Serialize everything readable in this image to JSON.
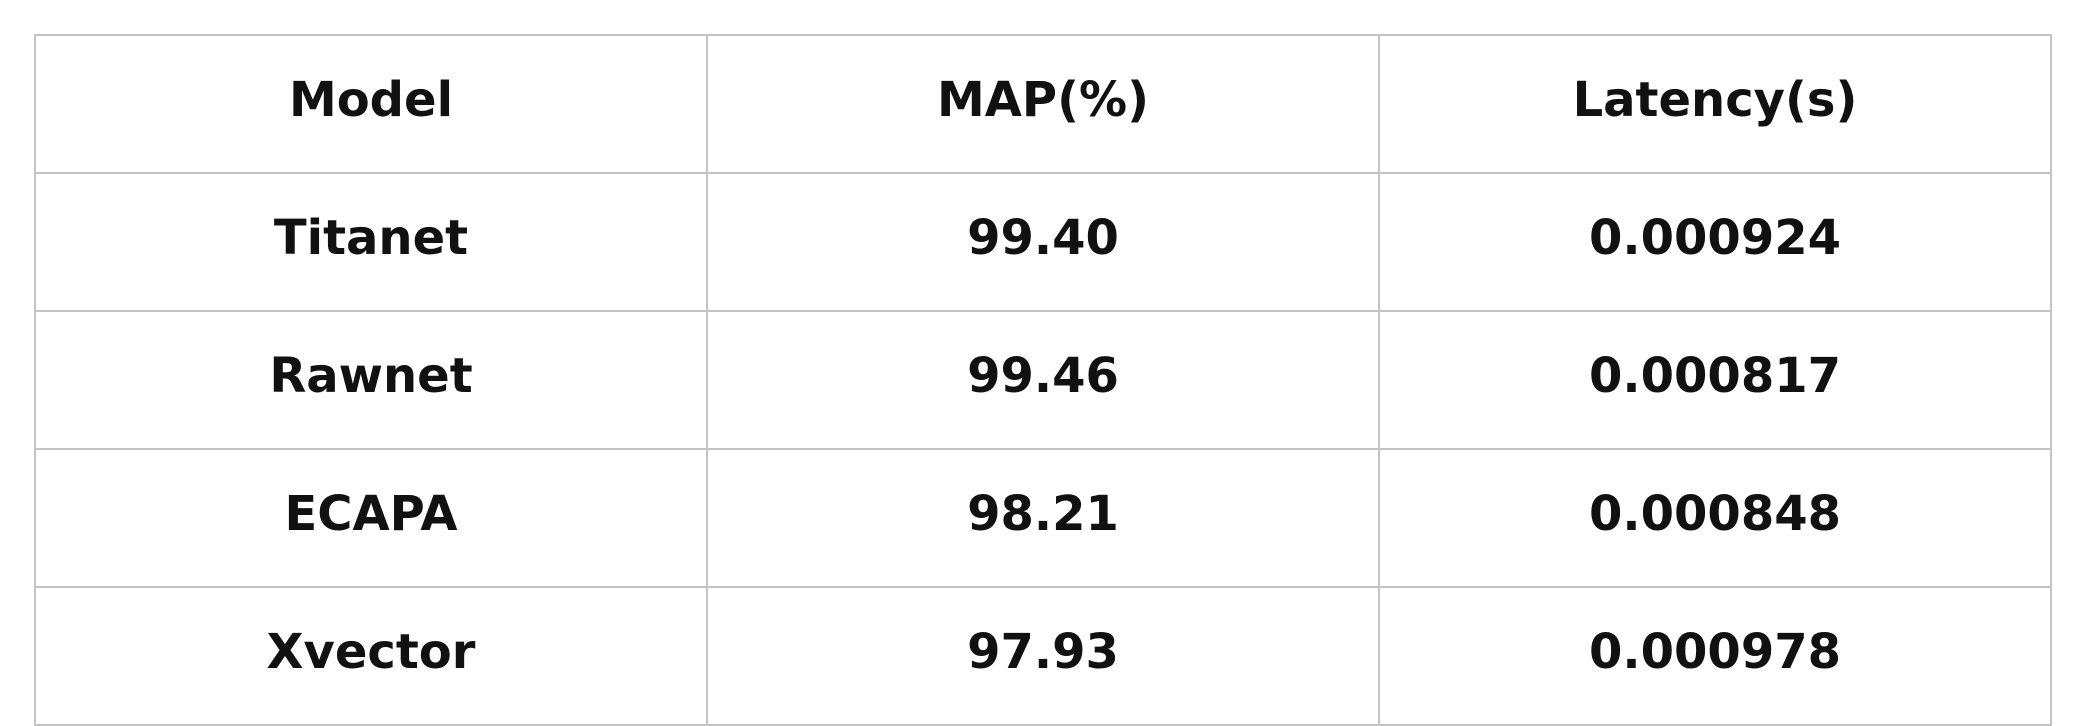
{
  "table": {
    "headers": [
      "Model",
      "MAP(%)",
      "Latency(s)"
    ],
    "rows": [
      [
        "Titanet",
        "99.40",
        "0.000924"
      ],
      [
        "Rawnet",
        "99.46",
        "0.000817"
      ],
      [
        "ECAPA",
        "98.21",
        "0.000848"
      ],
      [
        "Xvector",
        "97.93",
        "0.000978"
      ]
    ]
  }
}
